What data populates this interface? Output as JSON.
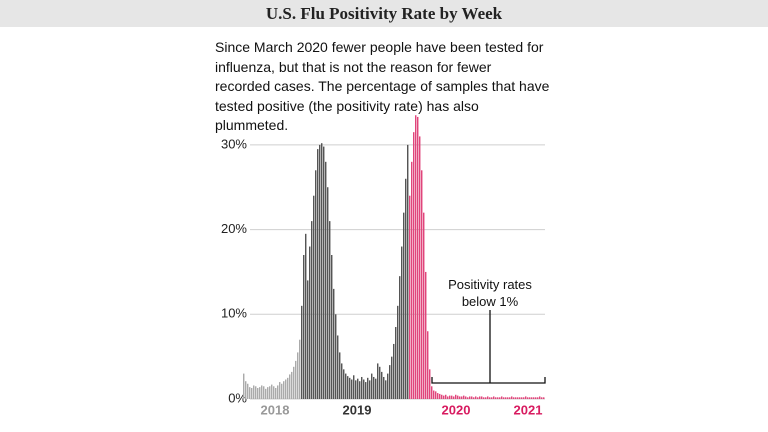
{
  "chart_data": {
    "type": "bar",
    "title": "U.S. Flu Positivity Rate by Week",
    "subtitle": "Since March 2020 fewer people have been tested for influenza, but that is not the reason for fewer recorded cases. The percentage of samples that have tested positive (the positivity rate) has also plummeted.",
    "annotation": "Positivity rates below 1%",
    "series": [
      {
        "color": "#aaaaaa",
        "x": [
          0,
          1,
          2,
          3,
          4,
          5,
          6,
          7,
          8,
          9,
          10,
          11,
          12,
          13,
          14,
          15,
          16,
          17,
          18,
          19,
          20,
          21,
          22,
          23,
          24,
          25,
          26,
          27,
          28
        ],
        "values": [
          3,
          2.1,
          1.8,
          1.4,
          1.3,
          1.6,
          1.5,
          1.3,
          1.4,
          1.6,
          1.5,
          1.2,
          1.4,
          1.5,
          1.7,
          1.5,
          1.3,
          1.6,
          2.0,
          1.8,
          2.1,
          2.3,
          2.5,
          2.9,
          3.2,
          3.8,
          4.5,
          5.5,
          7.0
        ]
      },
      {
        "color": "#555555",
        "x": [
          29,
          30,
          31,
          32,
          33,
          34,
          35,
          36,
          37,
          38,
          39,
          40,
          41,
          42,
          43,
          44,
          45,
          46,
          47,
          48,
          49,
          50,
          51,
          52,
          53,
          54,
          55,
          56,
          57,
          58,
          59,
          60,
          61,
          62,
          63,
          64,
          65,
          66,
          67,
          68,
          69,
          70,
          71,
          72,
          73,
          74,
          75,
          76,
          77,
          78,
          79,
          80,
          81,
          82
        ],
        "values": [
          11,
          17,
          19.5,
          14,
          18,
          21,
          24,
          27,
          29.5,
          30,
          30.2,
          29.8,
          28,
          25,
          21,
          17,
          13,
          10,
          7.5,
          5.5,
          4.2,
          3.5,
          3.0,
          2.7,
          2.5,
          2.3,
          2.8,
          2.2,
          2.4,
          2.1,
          2.6,
          2.3,
          2.0,
          2.5,
          2.2,
          3.0,
          2.6,
          2.4,
          4.2,
          3.8,
          3.2,
          2.6,
          2.2,
          3.0,
          4.0,
          5.0,
          6.5,
          8.5,
          11,
          14.5,
          18,
          22,
          26,
          30
        ]
      },
      {
        "color": "#e0457b",
        "x": [
          83,
          84,
          85,
          86,
          87,
          88,
          89,
          90,
          91,
          92,
          93,
          94,
          95,
          96,
          97,
          98,
          99,
          100,
          101,
          102,
          103,
          104,
          105,
          106,
          107,
          108,
          109,
          110,
          111,
          112,
          113,
          114,
          115,
          116,
          117,
          118,
          119,
          120,
          121,
          122,
          123,
          124,
          125,
          126,
          127,
          128,
          129,
          130,
          131,
          132,
          133,
          134,
          135,
          136,
          137,
          138,
          139,
          140,
          141,
          142,
          143,
          144,
          145,
          146,
          147,
          148,
          149,
          150
        ],
        "values": [
          24,
          28,
          31.5,
          33.5,
          33.3,
          31,
          27,
          22,
          15,
          8,
          3.5,
          1.5,
          1.0,
          0.9,
          0.7,
          0.6,
          0.5,
          0.4,
          0.5,
          0.3,
          0.4,
          0.4,
          0.3,
          0.5,
          0.4,
          0.3,
          0.3,
          0.4,
          0.3,
          0.2,
          0.3,
          0.3,
          0.2,
          0.3,
          0.2,
          0.3,
          0.3,
          0.2,
          0.2,
          0.3,
          0.2,
          0.2,
          0.3,
          0.2,
          0.2,
          0.2,
          0.3,
          0.2,
          0.2,
          0.2,
          0.2,
          0.3,
          0.2,
          0.2,
          0.2,
          0.2,
          0.2,
          0.2,
          0.3,
          0.2,
          0.2,
          0.2,
          0.2,
          0.2,
          0.2,
          0.3,
          0.2,
          0.2
        ]
      }
    ],
    "xlim": [
      0,
      151
    ],
    "xticks": [
      {
        "value": 16,
        "label": "2018"
      },
      {
        "value": 57,
        "label": "2019"
      },
      {
        "value": 106.5,
        "label": "2020"
      },
      {
        "value": 142.5,
        "label": "2021"
      }
    ],
    "xtick_colors": [
      "#999999",
      "#333333",
      "#d81b60",
      "#d81b60"
    ],
    "ylim": [
      0,
      34
    ],
    "yticks": [
      {
        "value": 0,
        "label": "0%"
      },
      {
        "value": 10,
        "label": "10%"
      },
      {
        "value": 20,
        "label": "20%"
      },
      {
        "value": 30,
        "label": "30%"
      }
    ],
    "grid": true
  }
}
